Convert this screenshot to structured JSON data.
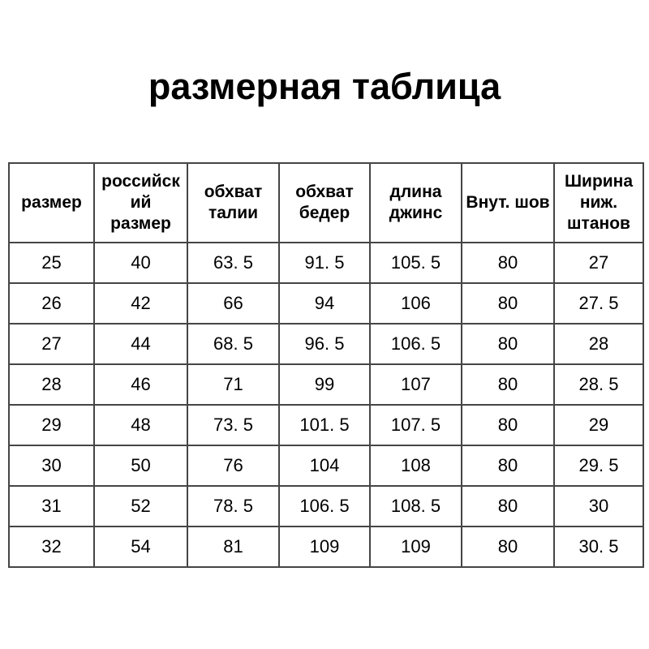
{
  "page": {
    "background_color": "#ffffff",
    "text_color": "#000000",
    "border_color": "#454545",
    "title": "размерная таблица"
  },
  "table": {
    "columns": [
      {
        "key": "size",
        "label": "размер"
      },
      {
        "key": "russian-size",
        "label": "российск\nий\nразмер"
      },
      {
        "key": "waist",
        "label": "обхват\nталии"
      },
      {
        "key": "hip",
        "label": "обхват\nбедер"
      },
      {
        "key": "jeans-length",
        "label": "длина\nджинс"
      },
      {
        "key": "inseam",
        "label": "Внут. шов"
      },
      {
        "key": "leg-opening",
        "label": "Ширина\nниж.\nштанов"
      }
    ],
    "rows": [
      [
        "25",
        "40",
        "63. 5",
        "91. 5",
        "105. 5",
        "80",
        "27"
      ],
      [
        "26",
        "42",
        "66",
        "94",
        "106",
        "80",
        "27. 5"
      ],
      [
        "27",
        "44",
        "68. 5",
        "96. 5",
        "106. 5",
        "80",
        "28"
      ],
      [
        "28",
        "46",
        "71",
        "99",
        "107",
        "80",
        "28. 5"
      ],
      [
        "29",
        "48",
        "73. 5",
        "101. 5",
        "107. 5",
        "80",
        "29"
      ],
      [
        "30",
        "50",
        "76",
        "104",
        "108",
        "80",
        "29. 5"
      ],
      [
        "31",
        "52",
        "78. 5",
        "106. 5",
        "108. 5",
        "80",
        "30"
      ],
      [
        "32",
        "54",
        "81",
        "109",
        "109",
        "80",
        "30. 5"
      ]
    ]
  },
  "chart_data": {
    "type": "table",
    "title": "размерная таблица",
    "columns": [
      "размер",
      "российский размер",
      "обхват талии",
      "обхват бедер",
      "длина джинс",
      "Внут. шов",
      "Ширина ниж. штанов"
    ],
    "rows": [
      [
        25,
        40,
        63.5,
        91.5,
        105.5,
        80,
        27
      ],
      [
        26,
        42,
        66,
        94,
        106,
        80,
        27.5
      ],
      [
        27,
        44,
        68.5,
        96.5,
        106.5,
        80,
        28
      ],
      [
        28,
        46,
        71,
        99,
        107,
        80,
        28.5
      ],
      [
        29,
        48,
        73.5,
        101.5,
        107.5,
        80,
        29
      ],
      [
        30,
        50,
        76,
        104,
        108,
        80,
        29.5
      ],
      [
        31,
        52,
        78.5,
        106.5,
        108.5,
        80,
        30
      ],
      [
        32,
        54,
        81,
        109,
        109,
        80,
        30.5
      ]
    ]
  }
}
